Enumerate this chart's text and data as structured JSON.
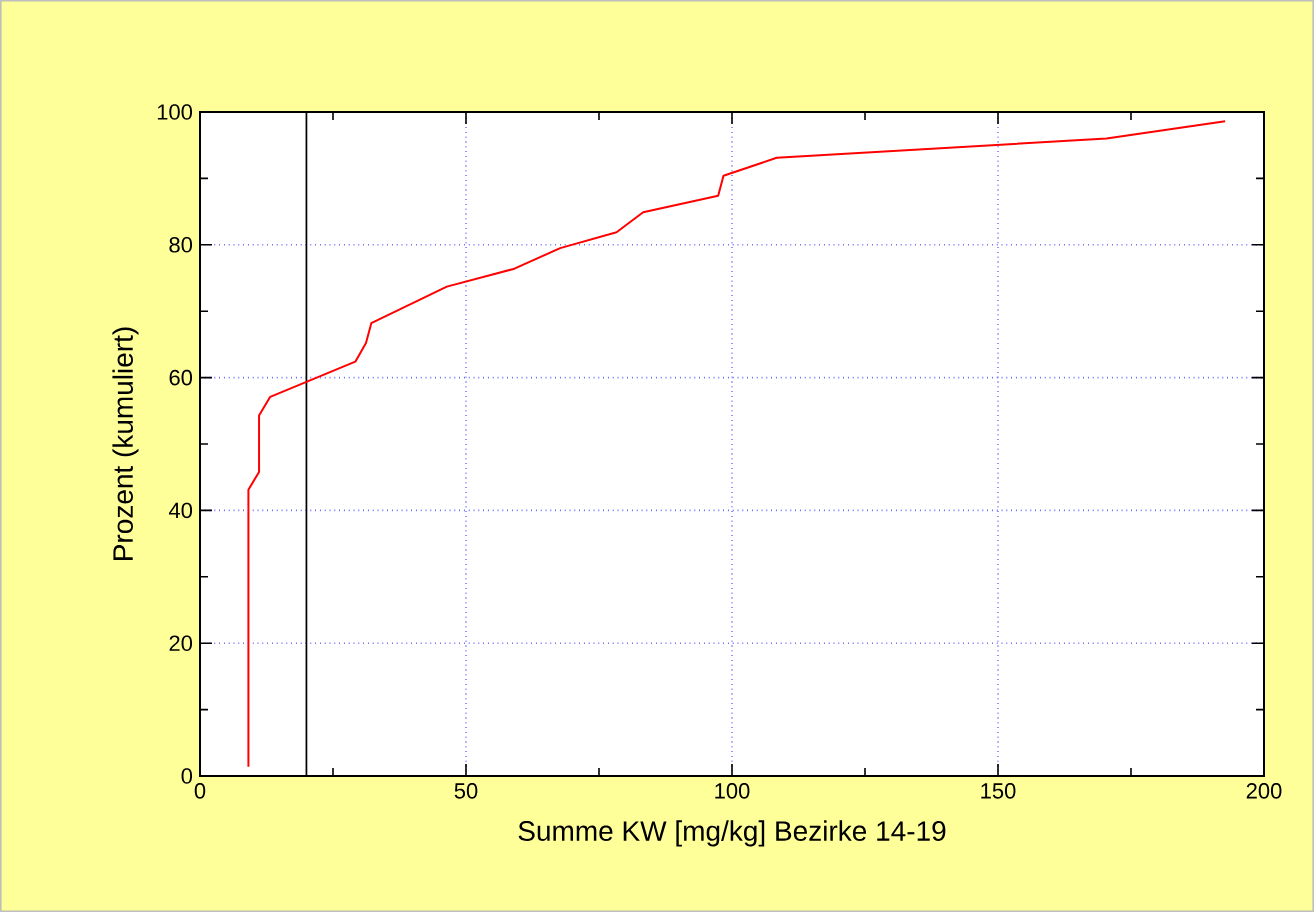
{
  "chart_data": {
    "type": "line",
    "xlabel": "Summe KW [mg/kg]   Bezirke 14-19",
    "ylabel": "Prozent (kumuliert)",
    "x": [
      9.1,
      9.1,
      11.1,
      11.1,
      13.2,
      29.2,
      31.2,
      32.2,
      46.4,
      59.1,
      67.7,
      78.3,
      83.3,
      97.4,
      98.4,
      108.4,
      170.4,
      192.7
    ],
    "series": [
      {
        "color": "#ff0000",
        "values": [
          1.4,
          43.1,
          45.8,
          54.3,
          57.1,
          62.4,
          65.2,
          68.2,
          73.7,
          76.4,
          79.5,
          81.9,
          84.9,
          87.4,
          90.4,
          93.1,
          96.0,
          98.6
        ]
      }
    ],
    "xlim": [
      0,
      200
    ],
    "ylim": [
      0,
      100
    ],
    "xticks": [
      0,
      50,
      100,
      150,
      200
    ],
    "yticks": [
      0,
      20,
      40,
      60,
      80,
      100
    ],
    "grid": true,
    "marker": "none",
    "line_style": "solid",
    "ref_lines": [
      {
        "axis": "x",
        "value": 20,
        "color": "#000000"
      }
    ]
  }
}
